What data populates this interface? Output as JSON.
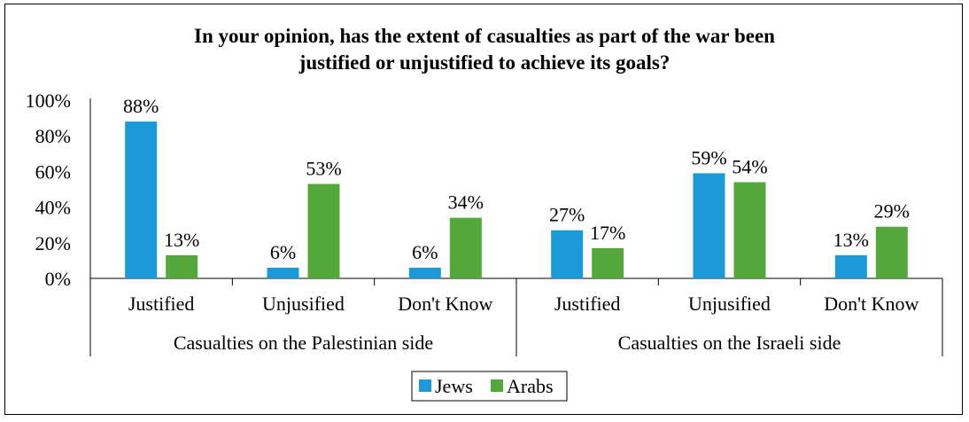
{
  "chart_data": {
    "type": "bar",
    "title_line1": "In your opinion, has the extent of casualties as part of the war been",
    "title_line2": "justified or unjustified to achieve its goals?",
    "ylim": [
      0,
      100
    ],
    "yticks": [
      "0%",
      "20%",
      "40%",
      "60%",
      "80%",
      "100%"
    ],
    "groups": [
      "Casualties on the Palestinian side",
      "Casualties on the Israeli side"
    ],
    "categories": [
      "Justified",
      "Unjusified",
      "Don't Know",
      "Justified",
      "Unjusified",
      "Don't Know"
    ],
    "series": [
      {
        "name": "Jews",
        "color": "#1a9bd7",
        "values": [
          88,
          6,
          6,
          27,
          59,
          13
        ],
        "labels": [
          "88%",
          "6%",
          "6%",
          "27%",
          "59%",
          "13%"
        ]
      },
      {
        "name": "Arabs",
        "color": "#52a93a",
        "values": [
          13,
          53,
          34,
          17,
          54,
          29
        ],
        "labels": [
          "13%",
          "53%",
          "34%",
          "17%",
          "54%",
          "29%"
        ]
      }
    ],
    "legend_position": "bottom",
    "grid": false
  }
}
